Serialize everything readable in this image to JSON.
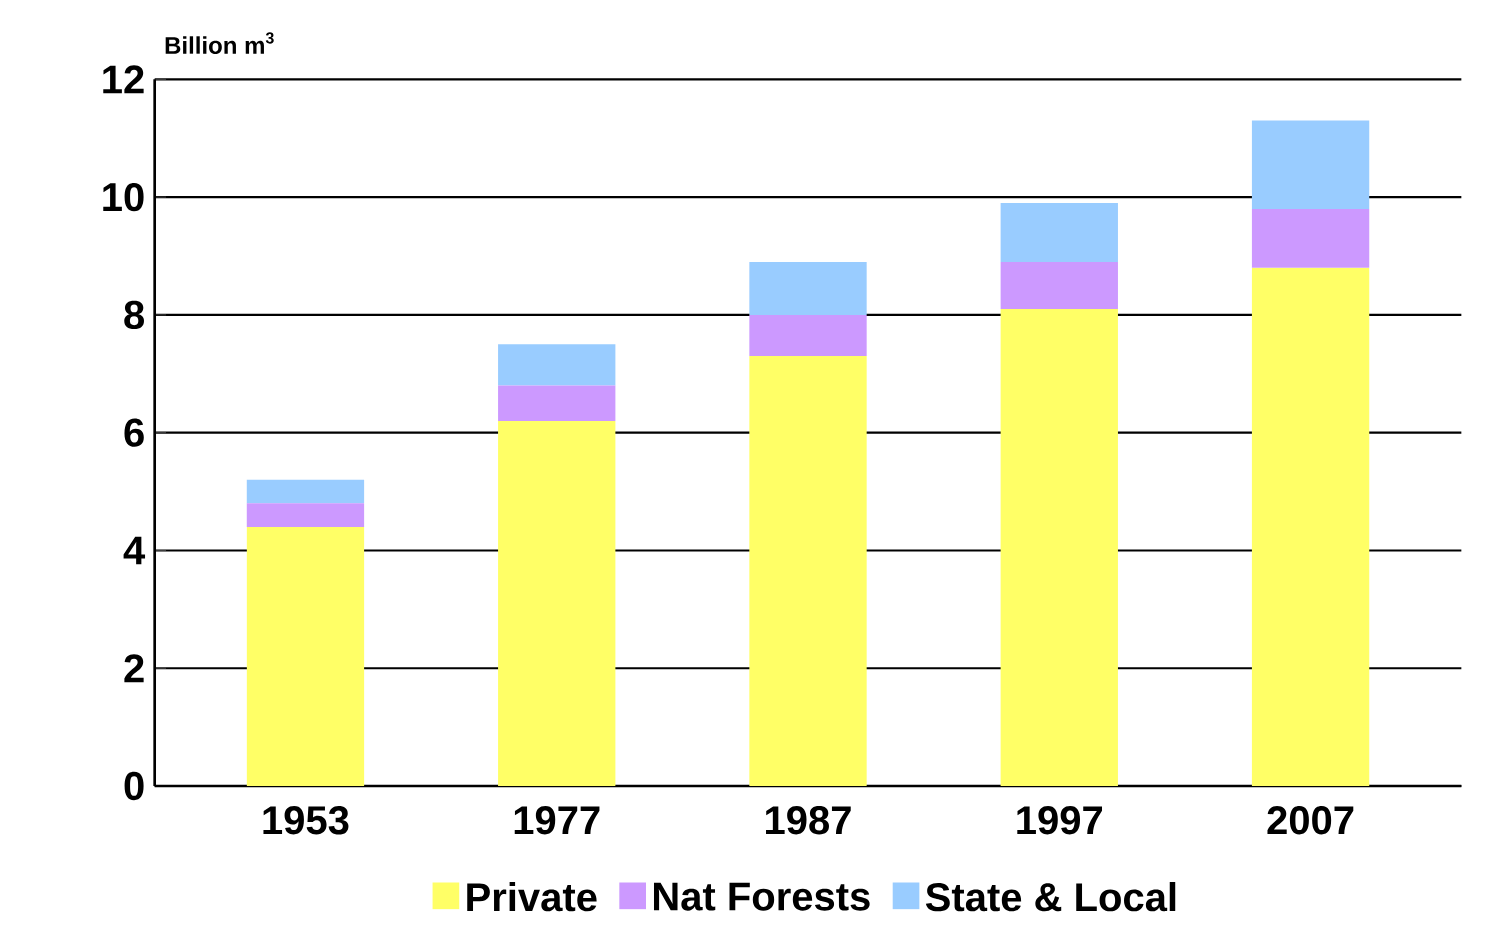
{
  "chart_data": {
    "type": "bar",
    "stacked": true,
    "ylabel": "Billion m$^{3}$",
    "categories": [
      "1953",
      "1977",
      "1987",
      "1997",
      "2007"
    ],
    "series": [
      {
        "name": "Private",
        "color": "#ffff66",
        "values": [
          4.4,
          6.2,
          7.3,
          8.1,
          8.8
        ]
      },
      {
        "name": "Nat Forests",
        "color": "#cc99ff",
        "values": [
          0.4,
          0.6,
          0.7,
          0.8,
          1.0
        ]
      },
      {
        "name": "State & Local",
        "color": "#99ccff",
        "values": [
          0.4,
          0.7,
          0.9,
          1.0,
          1.5
        ]
      }
    ],
    "ylim": [
      0,
      12
    ],
    "yticks": [
      0,
      2,
      4,
      6,
      8,
      10,
      12
    ],
    "grid": "y",
    "legend": "bottom"
  }
}
